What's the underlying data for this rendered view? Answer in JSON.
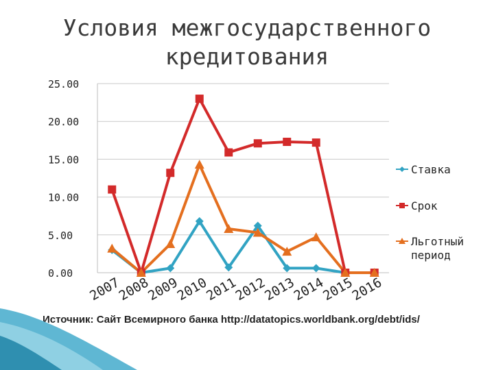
{
  "slide": {
    "source_text": "Источник: Сайт Всемирного банка http://datatopics.worldbank.org/debt/ids/"
  },
  "chart_data": {
    "type": "line",
    "title": "Условия межгосударственного кредитования",
    "title_lines": [
      "Условия межгосударственного",
      "кредитования"
    ],
    "categories": [
      "2007",
      "2008",
      "2009",
      "2010",
      "2011",
      "2012",
      "2013",
      "2014",
      "2015",
      "2016"
    ],
    "y_tick_labels": [
      "0.00",
      "5.00",
      "10.00",
      "15.00",
      "20.00",
      "25.00"
    ],
    "ylim": [
      0,
      25
    ],
    "grid": true,
    "legend_position": "right",
    "series": [
      {
        "name": "Ставка",
        "color": "#31a3c3",
        "marker": "diamond",
        "values": [
          3.0,
          0.0,
          0.6,
          6.8,
          0.7,
          6.2,
          0.6,
          0.6,
          0.0,
          0.0
        ]
      },
      {
        "name": "Срок",
        "color": "#d32a2a",
        "marker": "square",
        "values": [
          11.0,
          0.0,
          13.2,
          23.0,
          15.9,
          17.1,
          17.3,
          17.2,
          0.0,
          0.0
        ]
      },
      {
        "name": "Льготный период",
        "color": "#e46f1f",
        "marker": "triangle",
        "legend_lines": [
          "Льготный",
          "период"
        ],
        "values": [
          3.2,
          0.0,
          3.8,
          14.3,
          5.8,
          5.3,
          2.8,
          4.7,
          0.0,
          0.0
        ]
      }
    ]
  }
}
